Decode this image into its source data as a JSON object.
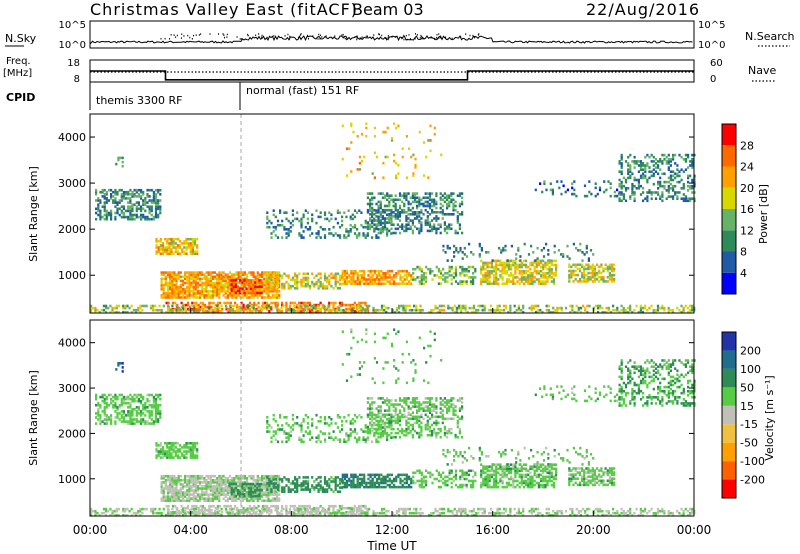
{
  "header": {
    "title": "Christmas Valley East (fitACF)",
    "beam": "Beam 03",
    "date": "22/Aug/2016"
  },
  "strips": {
    "nsky_label": "N.Sky",
    "nsky_ticks": [
      "10^5",
      "10^0"
    ],
    "nsearch_label": "N.Search",
    "freq_label_1": "Freq.",
    "freq_label_2": "[MHz]",
    "freq_ticks": [
      "18",
      "8"
    ],
    "nave_label": "Nave",
    "nave_ticks": [
      "60",
      "0"
    ],
    "cpid_label": "CPID",
    "cpid_segments": [
      {
        "start_hour": 0,
        "end_hour": 6,
        "label": "themis 3300 RF"
      },
      {
        "start_hour": 6,
        "end_hour": 24,
        "label": "normal (fast) 151 RF"
      }
    ],
    "freq_steps": [
      {
        "start_hour": 0,
        "end_hour": 3,
        "value": 13
      },
      {
        "start_hour": 3,
        "end_hour": 15,
        "value": 9
      },
      {
        "start_hour": 15,
        "end_hour": 24,
        "value": 13
      }
    ]
  },
  "chart_data": [
    {
      "type": "heatmap",
      "panel": "power",
      "ylabel": "Slant Range [km]",
      "y_ticks": [
        1000,
        2000,
        3000,
        4000
      ],
      "ylim": [
        180,
        4500
      ],
      "xlim": [
        0,
        24
      ],
      "colorbar_label": "Power [dB]",
      "colorbar_ticks": [
        "4",
        "8",
        "12",
        "16",
        "20",
        "24",
        "28"
      ],
      "colorbar_colors": [
        "#0000ff",
        "#1e5aa8",
        "#2e8b57",
        "#66b266",
        "#d8d800",
        "#ffa000",
        "#ff6a00",
        "#ff0000"
      ],
      "cpid_change_hour": 6
    },
    {
      "type": "heatmap",
      "panel": "velocity",
      "ylabel": "Slant Range [km]",
      "y_ticks": [
        1000,
        2000,
        3000,
        4000
      ],
      "ylim": [
        180,
        4500
      ],
      "xlim": [
        0,
        24
      ],
      "xlabel": "Time UT",
      "x_ticks": [
        "00:00",
        "04:00",
        "08:00",
        "12:00",
        "16:00",
        "20:00",
        "00:00"
      ],
      "colorbar_label": "Velocity [m s⁻¹]",
      "colorbar_ticks": [
        "200",
        "100",
        "50",
        "15",
        "-15",
        "-50",
        "-100",
        "-200"
      ],
      "colorbar_colors": [
        "#2233aa",
        "#1f6e8c",
        "#2e8b57",
        "#55cc44",
        "#c0c0b8",
        "#f0c040",
        "#ffa000",
        "#ff6000",
        "#ff0000"
      ],
      "cpid_change_hour": 6
    }
  ],
  "echo_regions": [
    {
      "t0": 0.2,
      "t1": 2.8,
      "r0": 2200,
      "r1": 2850,
      "pwr": 10,
      "vel": 0,
      "density": 0.55
    },
    {
      "t0": 1.0,
      "t1": 1.3,
      "r0": 3350,
      "r1": 3550,
      "pwr": 12,
      "vel": 100,
      "density": 0.5
    },
    {
      "t0": 2.6,
      "t1": 4.3,
      "r0": 1450,
      "r1": 1800,
      "pwr": 20,
      "vel": 0,
      "density": 0.7
    },
    {
      "t0": 2.8,
      "t1": 7.5,
      "r0": 500,
      "r1": 1050,
      "pwr": 22,
      "vel": -20,
      "density": 0.8
    },
    {
      "t0": 5.5,
      "t1": 6.8,
      "r0": 600,
      "r1": 900,
      "pwr": 27,
      "vel": 30,
      "density": 0.6
    },
    {
      "t0": 3.0,
      "t1": 11.0,
      "r0": 200,
      "r1": 420,
      "pwr": 25,
      "vel": -30,
      "density": 0.55
    },
    {
      "t0": 7.0,
      "t1": 10.0,
      "r0": 700,
      "r1": 1050,
      "pwr": 18,
      "vel": 30,
      "density": 0.5
    },
    {
      "t0": 10.0,
      "t1": 12.8,
      "r0": 800,
      "r1": 1100,
      "pwr": 22,
      "vel": 40,
      "density": 0.7
    },
    {
      "t0": 12.8,
      "t1": 15.3,
      "r0": 800,
      "r1": 1200,
      "pwr": 14,
      "vel": 0,
      "density": 0.4
    },
    {
      "t0": 15.5,
      "t1": 18.5,
      "r0": 800,
      "r1": 1300,
      "pwr": 18,
      "vel": 0,
      "density": 0.65
    },
    {
      "t0": 19.0,
      "t1": 20.8,
      "r0": 850,
      "r1": 1250,
      "pwr": 18,
      "vel": 0,
      "density": 0.6
    },
    {
      "t0": 14.0,
      "t1": 20.0,
      "r0": 1300,
      "r1": 1700,
      "pwr": 10,
      "vel": 0,
      "density": 0.15
    },
    {
      "t0": 7.0,
      "t1": 12.0,
      "r0": 1800,
      "r1": 2400,
      "pwr": 10,
      "vel": 0,
      "density": 0.25
    },
    {
      "t0": 11.0,
      "t1": 14.8,
      "r0": 1900,
      "r1": 2800,
      "pwr": 10,
      "vel": 0,
      "density": 0.45
    },
    {
      "t0": 17.5,
      "t1": 21.0,
      "r0": 2700,
      "r1": 3050,
      "pwr": 8,
      "vel": 0,
      "density": 0.15
    },
    {
      "t0": 21.0,
      "t1": 24.0,
      "r0": 2600,
      "r1": 3600,
      "pwr": 10,
      "vel": 15,
      "density": 0.35
    },
    {
      "t0": 0.0,
      "t1": 24.0,
      "r0": 180,
      "r1": 330,
      "pwr": 16,
      "vel": -20,
      "density": 0.45
    },
    {
      "t0": 10.0,
      "t1": 14.0,
      "r0": 3100,
      "r1": 4300,
      "pwr": 20,
      "vel": 0,
      "density": 0.05
    }
  ]
}
